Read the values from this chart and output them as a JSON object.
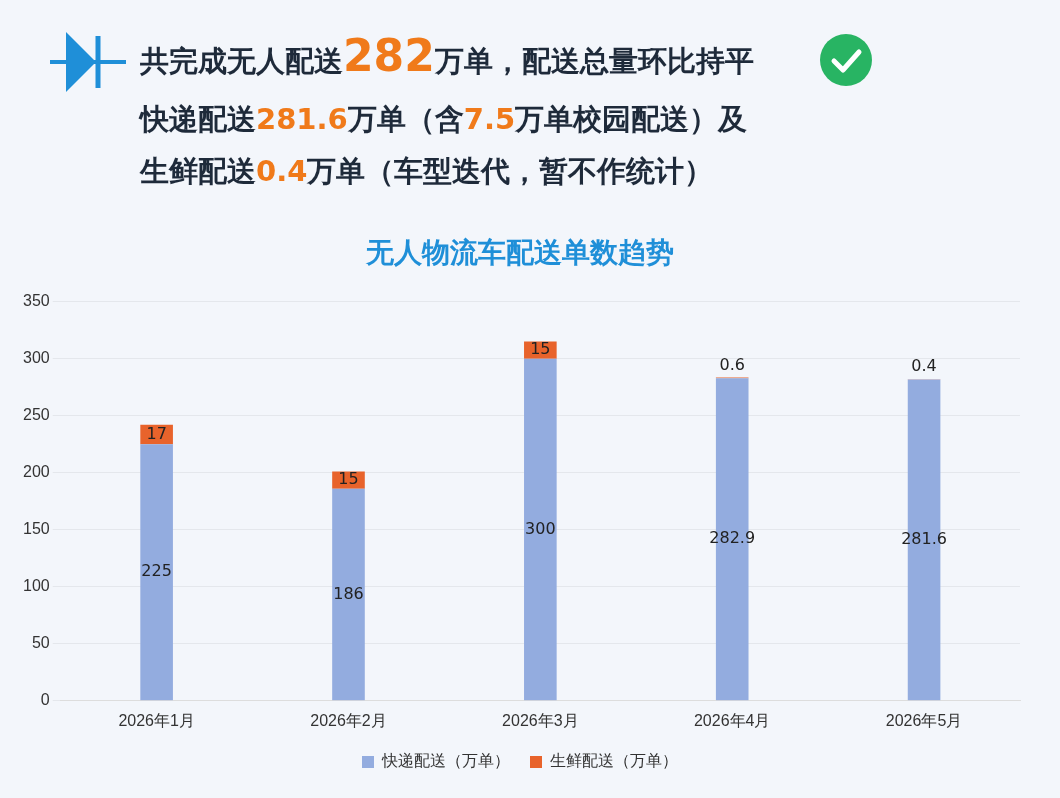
{
  "chart_data": {
    "type": "bar",
    "title": "无人物流车配送单数趋势",
    "annotations": [
      "共完成无人配送282万单，配送总量环比持平",
      "快递配送281.6万单（含7.5万单校园配送）及",
      "生鲜配送0.4万单（车型迭代，暂不作统计）"
    ],
    "categories": [
      "2026年1月",
      "2026年2月",
      "2026年3月",
      "2026年4月",
      "2026年5月"
    ],
    "series": [
      {
        "name": "快递配送（万单）",
        "color": "#93acdf",
        "values": [
          225,
          186,
          300,
          282.9,
          281.6
        ]
      },
      {
        "name": "生鲜配送（万单）",
        "color": "#e8632b",
        "values": [
          17,
          15,
          15,
          0.6,
          0.4
        ]
      }
    ],
    "stacked": true,
    "data_labels": true,
    "ylim": [
      0,
      350
    ],
    "yticks": [
      0,
      50,
      100,
      150,
      200,
      250,
      300,
      350
    ],
    "grid": "y",
    "legend": "bottom"
  }
}
